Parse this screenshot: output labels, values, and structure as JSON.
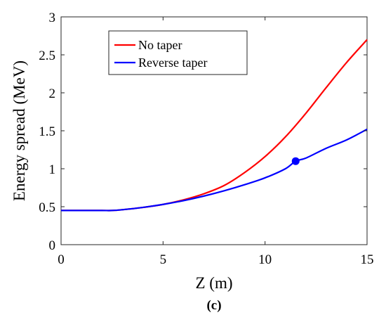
{
  "chart_data": {
    "type": "line",
    "xlabel": "Z (m)",
    "ylabel": "Energy spread (MeV)",
    "xlim": [
      0,
      15
    ],
    "ylim": [
      0,
      3
    ],
    "x_ticks": [
      "0",
      "5",
      "10",
      "15"
    ],
    "y_ticks": [
      "0",
      "0.5",
      "1",
      "1.5",
      "2",
      "2.5",
      "3"
    ],
    "grid": false,
    "legend_position": "top-left",
    "panel_label": "(c)",
    "series": [
      {
        "name": "No taper",
        "color": "#ff0000",
        "x": [
          0,
          1,
          2,
          2.5,
          3,
          4,
          5,
          6,
          7,
          8,
          9,
          10,
          11,
          12,
          13,
          14,
          15
        ],
        "y": [
          0.45,
          0.45,
          0.45,
          0.45,
          0.46,
          0.49,
          0.53,
          0.59,
          0.67,
          0.78,
          0.95,
          1.16,
          1.42,
          1.73,
          2.07,
          2.4,
          2.7
        ]
      },
      {
        "name": "Reverse taper",
        "color": "#0000ff",
        "x": [
          0,
          1,
          2,
          2.5,
          3,
          4,
          5,
          6,
          7,
          8,
          9,
          10,
          11,
          11.5,
          12,
          13,
          14,
          15
        ],
        "y": [
          0.45,
          0.45,
          0.45,
          0.45,
          0.46,
          0.49,
          0.53,
          0.58,
          0.64,
          0.71,
          0.79,
          0.88,
          1.0,
          1.1,
          1.14,
          1.27,
          1.38,
          1.52
        ]
      }
    ],
    "markers": [
      {
        "series": "Reverse taper",
        "x": 11.5,
        "y": 1.1,
        "color": "#0000ff"
      }
    ]
  }
}
